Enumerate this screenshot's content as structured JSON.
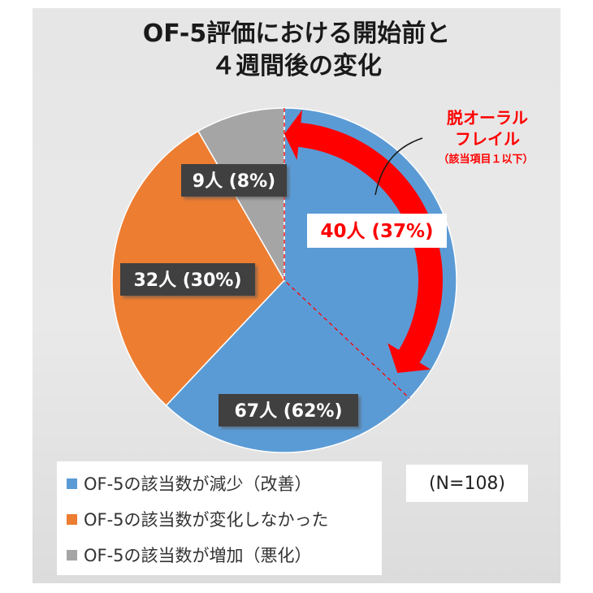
{
  "title_line1": "OF-5評価における開始前と",
  "title_line2": "４週間後の変化",
  "colors": {
    "improved": "#5b9bd5",
    "unchanged": "#ed7d31",
    "worse": "#a5a5a5",
    "accent": "#ff0000"
  },
  "chart_data": {
    "type": "pie",
    "title": "OF-5評価における開始前と４週間後の変化",
    "slices": [
      {
        "name": "OF-5の該当数が減少（改善）",
        "value": 67,
        "percent": 62,
        "label": "67人 (62%)"
      },
      {
        "name": "OF-5の該当数が変化しなかった",
        "value": 32,
        "percent": 30,
        "label": "32人 (30%)"
      },
      {
        "name": "OF-5の該当数が増加（悪化）",
        "value": 9,
        "percent": 8,
        "label": "9人 (8%)"
      }
    ],
    "annotation": {
      "title_line1": "脱オーラル",
      "title_line2": "フレイル",
      "subtitle": "（該当項目１以下）",
      "value_label": "40人 (37%)",
      "value": 40,
      "percent": 37
    },
    "legend_position": "bottom-left"
  },
  "sample_size": "(N=108)"
}
